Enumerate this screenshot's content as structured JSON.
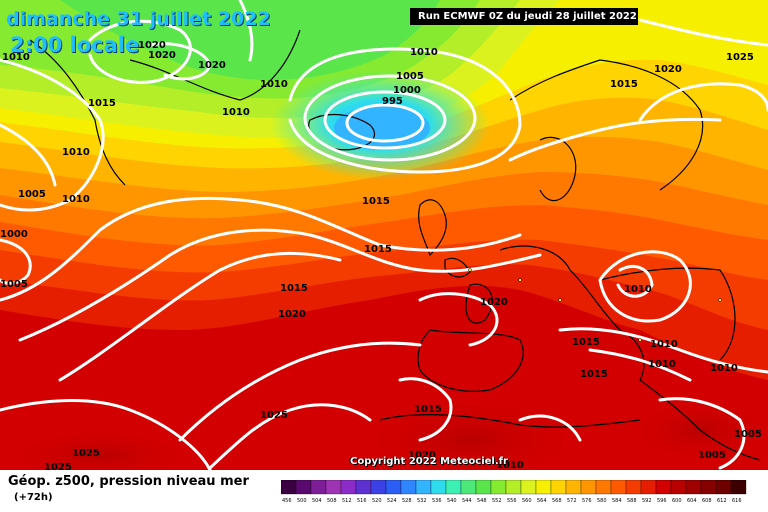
{
  "header": {
    "date_line": "dimanche 31 juillet 2022",
    "time_line": "2:00 locale",
    "run_info": "Run ECMWF 0Z du jeudi 28 juillet 2022"
  },
  "copyright": "Copyright 2022 Meteociel.fr",
  "legend": {
    "title": "Géop. z500, pression niveau mer",
    "subtitle": "(+72h)",
    "ticks": [
      "456",
      "500",
      "504",
      "508",
      "512",
      "516",
      "520",
      "524",
      "528",
      "532",
      "536",
      "540",
      "544",
      "548",
      "552",
      "556",
      "560",
      "564",
      "568",
      "572",
      "576",
      "580",
      "584",
      "588",
      "592",
      "596",
      "600",
      "604",
      "608",
      "612",
      "616"
    ],
    "colors": [
      "#3a0040",
      "#5a0a6e",
      "#7d1e96",
      "#9e33b4",
      "#8b2cc8",
      "#5e32d2",
      "#3c41e6",
      "#2a5ef5",
      "#2f86ff",
      "#33b4ff",
      "#2edcec",
      "#3cf0b4",
      "#4ce87a",
      "#5ae64a",
      "#86ea30",
      "#b4ee28",
      "#dcf21e",
      "#f6f000",
      "#ffd400",
      "#ffb400",
      "#ff9600",
      "#ff7800",
      "#ff5a00",
      "#f53c00",
      "#e61e00",
      "#d20000",
      "#b90000",
      "#a00000",
      "#870000",
      "#6e0000",
      "#3c0000"
    ]
  },
  "isobar_labels": [
    {
      "text": "1010"
    },
    {
      "text": "1020"
    },
    {
      "text": "1020"
    },
    {
      "text": "1015"
    },
    {
      "text": "1020"
    },
    {
      "text": "1010"
    },
    {
      "text": "1010"
    },
    {
      "text": "1010"
    },
    {
      "text": "1005"
    },
    {
      "text": "1000"
    },
    {
      "text": "995"
    },
    {
      "text": "1020"
    },
    {
      "text": "1025"
    },
    {
      "text": "1015"
    },
    {
      "text": "1010"
    },
    {
      "text": "1010"
    },
    {
      "text": "1005"
    },
    {
      "text": "1000"
    },
    {
      "text": "1005"
    },
    {
      "text": "1015"
    },
    {
      "text": "1015"
    },
    {
      "text": "1015"
    },
    {
      "text": "1020"
    },
    {
      "text": "1020"
    },
    {
      "text": "1010"
    },
    {
      "text": "1015"
    },
    {
      "text": "1010"
    },
    {
      "text": "1010"
    },
    {
      "text": "1010"
    },
    {
      "text": "1015"
    },
    {
      "text": "1025"
    },
    {
      "text": "1015"
    },
    {
      "text": "1025"
    },
    {
      "text": "1025"
    },
    {
      "text": "1020"
    },
    {
      "text": "1010"
    },
    {
      "text": "1005"
    },
    {
      "text": "1005"
    }
  ]
}
